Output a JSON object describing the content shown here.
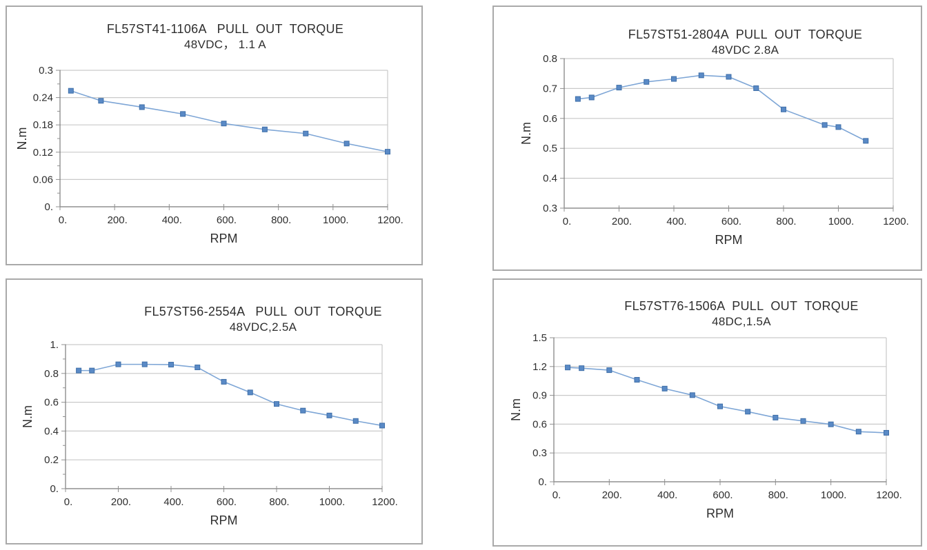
{
  "colors": {
    "line": "#7ea6d6",
    "marker": "#5a8ac6",
    "marker_border": "#3f6fa8",
    "grid": "#c9c9c9",
    "axis": "#8f8f8f",
    "text": "#2e2e2e",
    "panel_border": "#a9a9a9"
  },
  "chart_data": [
    {
      "type": "line",
      "title": "FL57ST41-1106A   PULL  OUT  TORQUE",
      "subtitle": "48VDC， 1.1 A",
      "xlabel": "RPM",
      "ylabel": "N.m",
      "x_min": 0,
      "x_max": 1200,
      "y_min": 0,
      "y_max": 0.3,
      "y_minor_step": 0.03,
      "x_ticks": [
        0,
        200,
        400,
        600,
        800,
        1000,
        1200
      ],
      "x_tick_labels": [
        "0.",
        "200.",
        "400.",
        "600.",
        "800.",
        "1000.",
        "1200."
      ],
      "y_ticks": [
        0,
        0.06,
        0.12,
        0.18,
        0.24,
        0.3
      ],
      "y_tick_labels": [
        "0.",
        "0.06",
        "0.12",
        "0.18",
        "0.24",
        "0.3"
      ],
      "grid": "horizontal",
      "legend": "none",
      "points": [
        [
          40,
          0.255
        ],
        [
          150,
          0.233
        ],
        [
          300,
          0.219
        ],
        [
          450,
          0.204
        ],
        [
          600,
          0.183
        ],
        [
          750,
          0.17
        ],
        [
          900,
          0.161
        ],
        [
          1050,
          0.139
        ],
        [
          1200,
          0.121
        ]
      ]
    },
    {
      "type": "line",
      "title": "FL57ST51-2804A  PULL  OUT  TORQUE",
      "subtitle": "48VDC 2.8A",
      "xlabel": "RPM",
      "ylabel": "N.m",
      "x_min": 0,
      "x_max": 1200,
      "y_min": 0.3,
      "y_max": 0.8,
      "y_minor_step": null,
      "x_ticks": [
        0,
        200,
        400,
        600,
        800,
        1000,
        1200
      ],
      "x_tick_labels": [
        "0.",
        "200.",
        "400.",
        "600.",
        "800.",
        "1000.",
        "1200."
      ],
      "y_ticks": [
        0.3,
        0.4,
        0.5,
        0.6,
        0.7,
        0.8
      ],
      "y_tick_labels": [
        "0.3",
        "0.4",
        "0.5",
        "0.6",
        "0.7",
        "0.8"
      ],
      "grid": "horizontal",
      "legend": "none",
      "points": [
        [
          50,
          0.665
        ],
        [
          100,
          0.67
        ],
        [
          200,
          0.703
        ],
        [
          300,
          0.722
        ],
        [
          400,
          0.732
        ],
        [
          500,
          0.744
        ],
        [
          600,
          0.739
        ],
        [
          700,
          0.701
        ],
        [
          800,
          0.63
        ],
        [
          950,
          0.578
        ],
        [
          1000,
          0.571
        ],
        [
          1100,
          0.525
        ]
      ]
    },
    {
      "type": "line",
      "title": "FL57ST56-2554A   PULL  OUT  TORQUE",
      "subtitle": "48VDC,2.5A",
      "xlabel": "RPM",
      "ylabel": "N.m",
      "x_min": 0,
      "x_max": 1200,
      "y_min": 0,
      "y_max": 1.0,
      "y_minor_step": 0.1,
      "x_ticks": [
        0,
        200,
        400,
        600,
        800,
        1000,
        1200
      ],
      "x_tick_labels": [
        "0.",
        "200.",
        "400.",
        "600.",
        "800.",
        "1000.",
        "1200."
      ],
      "y_ticks": [
        0,
        0.2,
        0.4,
        0.6,
        0.8,
        1.0
      ],
      "y_tick_labels": [
        "0.",
        "0.2",
        "0.4",
        "0.6",
        "0.8",
        "1."
      ],
      "grid": "horizontal",
      "legend": "none",
      "points": [
        [
          50,
          0.82
        ],
        [
          100,
          0.82
        ],
        [
          200,
          0.863
        ],
        [
          300,
          0.863
        ],
        [
          400,
          0.861
        ],
        [
          500,
          0.842
        ],
        [
          600,
          0.742
        ],
        [
          700,
          0.668
        ],
        [
          800,
          0.588
        ],
        [
          900,
          0.542
        ],
        [
          1000,
          0.508
        ],
        [
          1100,
          0.47
        ],
        [
          1200,
          0.438
        ]
      ]
    },
    {
      "type": "line",
      "title": "FL57ST76-1506A  PULL  OUT  TORQUE",
      "subtitle": "48DC,1.5A",
      "xlabel": "RPM",
      "ylabel": "N.m",
      "x_min": 0,
      "x_max": 1200,
      "y_min": 0,
      "y_max": 1.5,
      "y_minor_step": null,
      "x_ticks": [
        0,
        200,
        400,
        600,
        800,
        1000,
        1200
      ],
      "x_tick_labels": [
        "0.",
        "200.",
        "400.",
        "600.",
        "800.",
        "1000.",
        "1200."
      ],
      "y_ticks": [
        0,
        0.3,
        0.6,
        0.9,
        1.2,
        1.5
      ],
      "y_tick_labels": [
        "0.",
        "0.3",
        "0.6",
        "0.9",
        "1.2",
        "1.5"
      ],
      "grid": "horizontal",
      "legend": "none",
      "points": [
        [
          50,
          1.19
        ],
        [
          100,
          1.183
        ],
        [
          200,
          1.162
        ],
        [
          300,
          1.062
        ],
        [
          400,
          0.97
        ],
        [
          500,
          0.902
        ],
        [
          600,
          0.785
        ],
        [
          700,
          0.73
        ],
        [
          800,
          0.668
        ],
        [
          900,
          0.633
        ],
        [
          1000,
          0.598
        ],
        [
          1100,
          0.522
        ],
        [
          1200,
          0.51
        ]
      ]
    }
  ]
}
